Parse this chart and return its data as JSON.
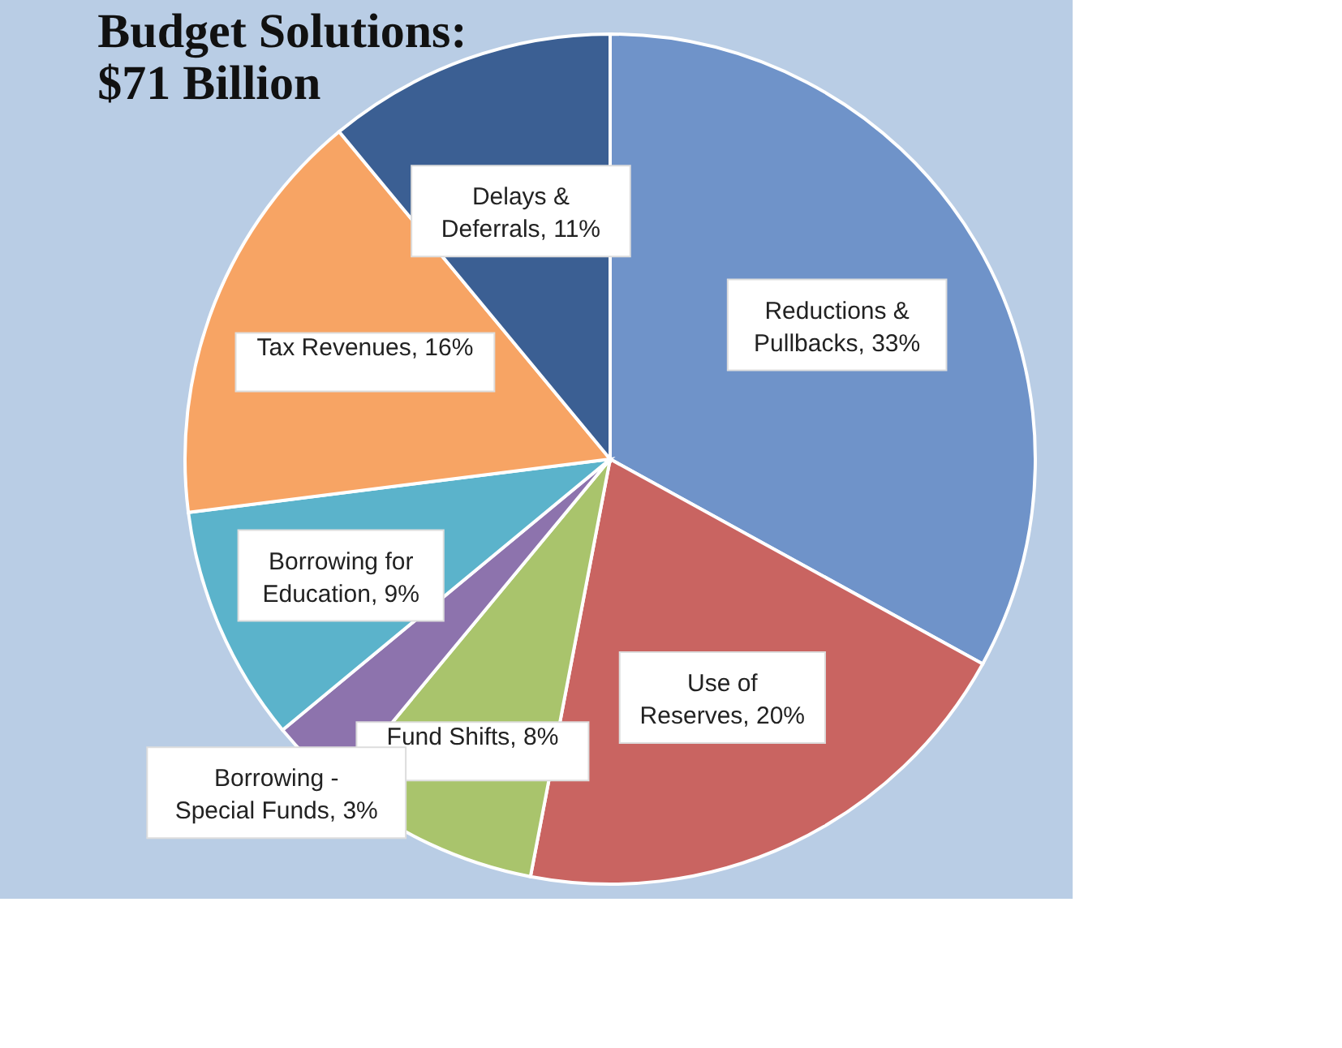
{
  "chart_data": {
    "type": "pie",
    "title": "Budget Solutions:\n$71 Billion",
    "categories": [
      "Reductions & Pullbacks",
      "Use of Reserves",
      "Fund Shifts",
      "Borrowing - Special Funds",
      "Borrowing for Education",
      "Tax Revenues",
      "Delays & Deferrals"
    ],
    "value_labels": [
      "33%",
      "20%",
      "8%",
      "3%",
      "9%",
      "16%",
      "11%"
    ],
    "values": [
      33,
      20,
      8,
      3,
      9,
      16,
      11
    ],
    "colors": [
      "#6f93c9",
      "#c96461",
      "#a9c46c",
      "#8d73ad",
      "#5bb3cb",
      "#f7a464",
      "#3b5f93"
    ],
    "legend": false
  }
}
